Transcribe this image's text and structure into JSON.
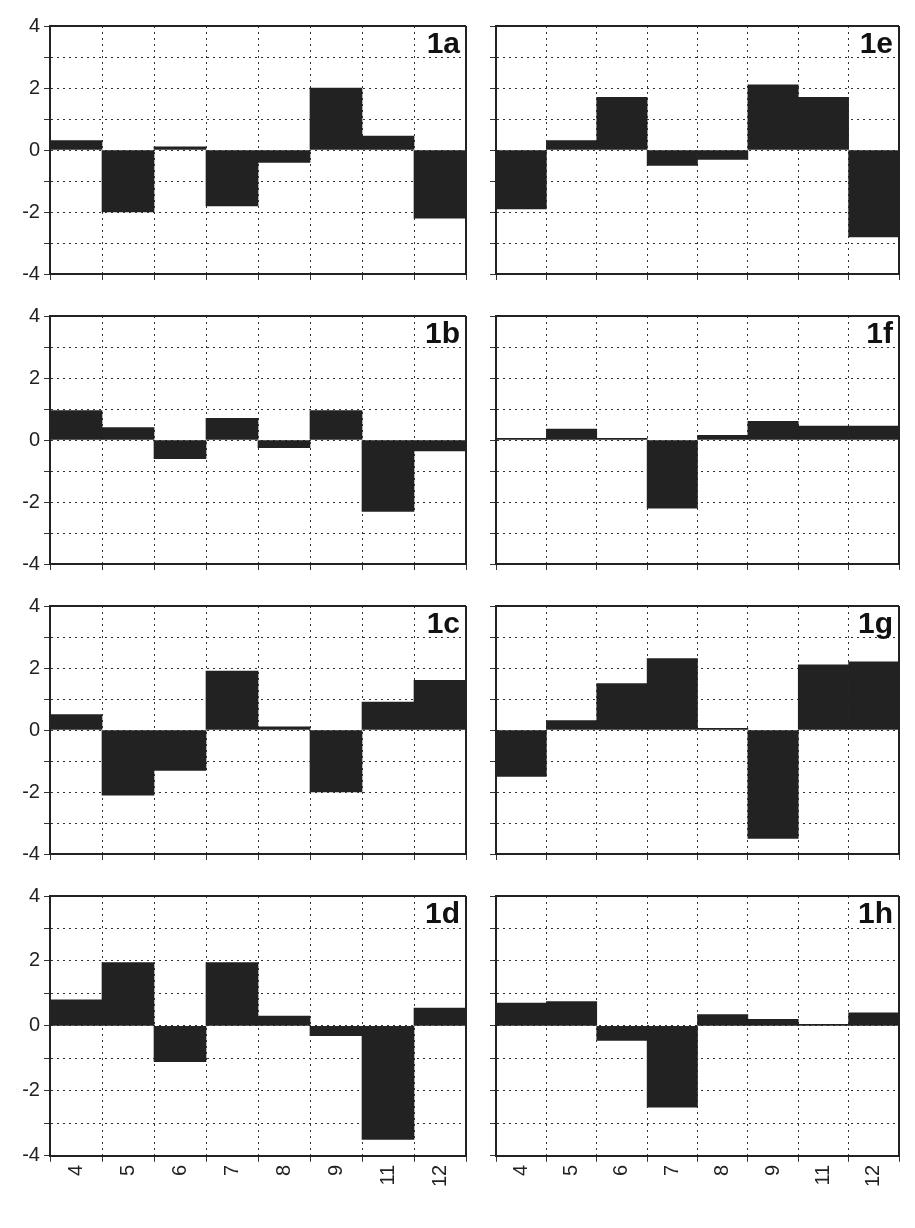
{
  "chart_data": [
    {
      "type": "bar",
      "categories": [
        "4",
        "5",
        "6",
        "7",
        "8",
        "9",
        "11",
        "12"
      ],
      "values": [
        0.3,
        -2.0,
        0.1,
        -1.8,
        -0.4,
        2.0,
        0.45,
        -2.2
      ],
      "color": "#222222",
      "ylim": [
        -4,
        4
      ],
      "yticks": [
        -4,
        {
          "value": -3,
          "label": null
        },
        -2,
        {
          "value": -1,
          "label": null
        },
        0,
        {
          "value": 1,
          "label": null
        },
        2,
        {
          "value": 3,
          "label": null
        },
        4
      ],
      "grid": true,
      "tick_labels": "y",
      "annotations": [
        "1a"
      ]
    },
    {
      "type": "bar",
      "categories": [
        "4",
        "5",
        "6",
        "7",
        "8",
        "9",
        "11",
        "12"
      ],
      "values": [
        -1.9,
        0.3,
        1.7,
        -0.5,
        -0.3,
        2.1,
        1.7,
        -2.8
      ],
      "color": "#222222",
      "ylim": [
        -4,
        4
      ],
      "yticks": [
        -4,
        {
          "value": -3,
          "label": null
        },
        -2,
        {
          "value": -1,
          "label": null
        },
        0,
        {
          "value": 1,
          "label": null
        },
        2,
        {
          "value": 3,
          "label": null
        },
        4
      ],
      "grid": true,
      "tick_labels": false,
      "annotations": [
        "1e"
      ]
    },
    {
      "type": "bar",
      "categories": [
        "4",
        "5",
        "6",
        "7",
        "8",
        "9",
        "11",
        "12"
      ],
      "values": [
        0.95,
        0.4,
        -0.6,
        0.7,
        -0.25,
        0.95,
        -2.3,
        -0.35
      ],
      "color": "#222222",
      "ylim": [
        -4,
        4
      ],
      "yticks": [
        -4,
        {
          "value": -3,
          "label": null
        },
        -2,
        {
          "value": -1,
          "label": null
        },
        0,
        {
          "value": 1,
          "label": null
        },
        2,
        {
          "value": 3,
          "label": null
        },
        4
      ],
      "grid": true,
      "tick_labels": "y",
      "annotations": [
        "1b"
      ]
    },
    {
      "type": "bar",
      "categories": [
        "4",
        "5",
        "6",
        "7",
        "8",
        "9",
        "11",
        "12"
      ],
      "values": [
        0.05,
        0.35,
        0.05,
        -2.2,
        0.15,
        0.6,
        0.45,
        0.45
      ],
      "color": "#222222",
      "ylim": [
        -4,
        4
      ],
      "yticks": [
        -4,
        {
          "value": -3,
          "label": null
        },
        -2,
        {
          "value": -1,
          "label": null
        },
        0,
        {
          "value": 1,
          "label": null
        },
        2,
        {
          "value": 3,
          "label": null
        },
        4
      ],
      "grid": true,
      "tick_labels": false,
      "annotations": [
        "1f"
      ]
    },
    {
      "type": "bar",
      "categories": [
        "4",
        "5",
        "6",
        "7",
        "8",
        "9",
        "11",
        "12"
      ],
      "values": [
        0.5,
        -2.1,
        -1.3,
        1.9,
        0.1,
        -2.0,
        0.9,
        1.6
      ],
      "color": "#222222",
      "ylim": [
        -4,
        4
      ],
      "yticks": [
        -4,
        {
          "value": -3,
          "label": null
        },
        -2,
        {
          "value": -1,
          "label": null
        },
        0,
        {
          "value": 1,
          "label": null
        },
        2,
        {
          "value": 3,
          "label": null
        },
        4
      ],
      "grid": true,
      "tick_labels": "y",
      "annotations": [
        "1c"
      ]
    },
    {
      "type": "bar",
      "categories": [
        "4",
        "5",
        "6",
        "7",
        "8",
        "9",
        "11",
        "12"
      ],
      "values": [
        -1.5,
        0.3,
        1.5,
        2.3,
        0.05,
        -3.5,
        2.1,
        2.2
      ],
      "color": "#222222",
      "ylim": [
        -4,
        4
      ],
      "yticks": [
        -4,
        {
          "value": -3,
          "label": null
        },
        -2,
        {
          "value": -1,
          "label": null
        },
        0,
        {
          "value": 1,
          "label": null
        },
        2,
        {
          "value": 3,
          "label": null
        },
        4
      ],
      "grid": true,
      "tick_labels": false,
      "annotations": [
        "1g"
      ]
    },
    {
      "type": "bar",
      "categories": [
        "4",
        "5",
        "6",
        "7",
        "8",
        "9",
        "11",
        "12"
      ],
      "values": [
        0.8,
        1.95,
        -1.1,
        1.95,
        0.3,
        -0.3,
        -3.5,
        0.55
      ],
      "color": "#222222",
      "ylim": [
        -4,
        4
      ],
      "yticks": [
        -4,
        {
          "value": -3,
          "label": null
        },
        -2,
        {
          "value": -1,
          "label": null
        },
        0,
        {
          "value": 1,
          "label": null
        },
        2,
        {
          "value": 3,
          "label": null
        },
        4
      ],
      "grid": true,
      "annotations": [
        "1d"
      ]
    },
    {
      "type": "bar",
      "categories": [
        "4",
        "5",
        "6",
        "7",
        "8",
        "9",
        "11",
        "12"
      ],
      "values": [
        0.7,
        0.75,
        -0.45,
        -2.5,
        0.35,
        0.2,
        0.05,
        0.4
      ],
      "color": "#222222",
      "ylim": [
        -4,
        4
      ],
      "yticks": [
        -4,
        {
          "value": -3,
          "label": null
        },
        -2,
        {
          "value": -1,
          "label": null
        },
        0,
        {
          "value": 1,
          "label": null
        },
        2,
        {
          "value": 3,
          "label": null
        },
        4
      ],
      "grid": true,
      "tick_labels": "x",
      "annotations": [
        "1h"
      ]
    }
  ]
}
